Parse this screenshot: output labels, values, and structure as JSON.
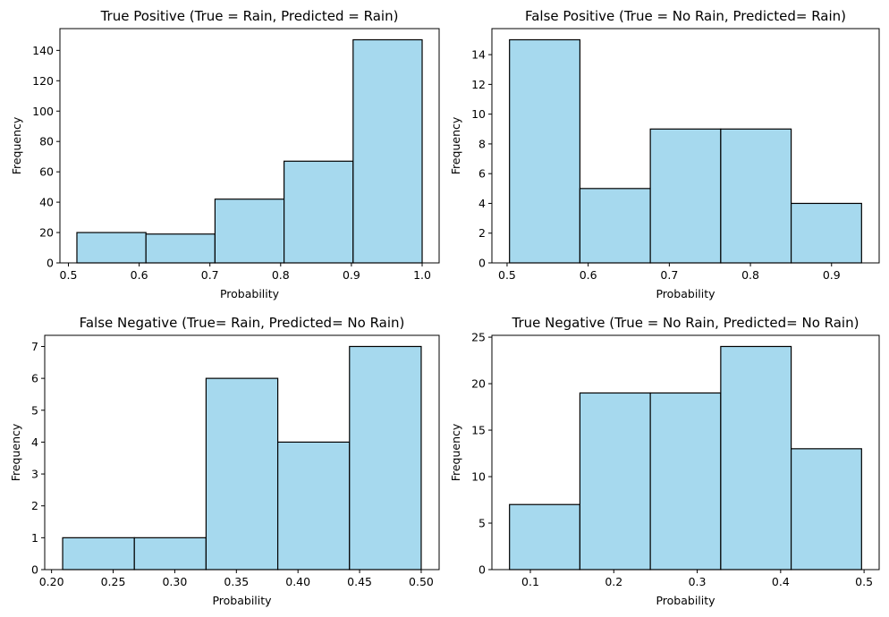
{
  "style": {
    "bar_fill": "#a6d9ee",
    "bar_edge": "#000000",
    "axis_color": "#000000"
  },
  "chart_data": [
    {
      "type": "bar",
      "title": "True Positive  (True = Rain, Predicted = Rain)",
      "xlabel": "Probability",
      "ylabel": "Frequency",
      "bin_edges": [
        0.512,
        0.6096,
        0.7072,
        0.8048,
        0.9024,
        1.0
      ],
      "values": [
        20,
        19,
        42,
        67,
        147
      ],
      "xlim": [
        0.488,
        1.024
      ],
      "ylim": [
        0,
        154.35
      ],
      "xticks": [
        0.5,
        0.6,
        0.7,
        0.8,
        0.9,
        1.0
      ],
      "xtick_labels": [
        "0.5",
        "0.6",
        "0.7",
        "0.8",
        "0.9",
        "1.0"
      ],
      "yticks": [
        0,
        20,
        40,
        60,
        80,
        100,
        120,
        140
      ],
      "ytick_labels": [
        "0",
        "20",
        "40",
        "60",
        "80",
        "100",
        "120",
        "140"
      ]
    },
    {
      "type": "bar",
      "title": "False Positive  (True = No Rain, Predicted= Rain)",
      "xlabel": "Probability",
      "ylabel": "Frequency",
      "bin_edges": [
        0.503,
        0.5898,
        0.6766,
        0.7634,
        0.8502,
        0.937
      ],
      "values": [
        15,
        5,
        9,
        9,
        4
      ],
      "xlim": [
        0.4813,
        0.9587
      ],
      "ylim": [
        0,
        15.75
      ],
      "xticks": [
        0.5,
        0.6,
        0.7,
        0.8,
        0.9
      ],
      "xtick_labels": [
        "0.5",
        "0.6",
        "0.7",
        "0.8",
        "0.9"
      ],
      "yticks": [
        0,
        2,
        4,
        6,
        8,
        10,
        12,
        14
      ],
      "ytick_labels": [
        "0",
        "2",
        "4",
        "6",
        "8",
        "10",
        "12",
        "14"
      ]
    },
    {
      "type": "bar",
      "title": "False Negative  (True= Rain, Predicted= No Rain)",
      "xlabel": "Probability",
      "ylabel": "Frequency",
      "bin_edges": [
        0.209,
        0.2672,
        0.3254,
        0.3836,
        0.4418,
        0.5
      ],
      "values": [
        1,
        1,
        6,
        4,
        7
      ],
      "xlim": [
        0.19445,
        0.51455
      ],
      "ylim": [
        0,
        7.35
      ],
      "xticks": [
        0.2,
        0.25,
        0.3,
        0.35,
        0.4,
        0.45,
        0.5
      ],
      "xtick_labels": [
        "0.20",
        "0.25",
        "0.30",
        "0.35",
        "0.40",
        "0.45",
        "0.50"
      ],
      "yticks": [
        0,
        1,
        2,
        3,
        4,
        5,
        6,
        7
      ],
      "ytick_labels": [
        "0",
        "1",
        "2",
        "3",
        "4",
        "5",
        "6",
        "7"
      ]
    },
    {
      "type": "bar",
      "title": "True Negative  (True = No Rain, Predicted= No Rain)",
      "xlabel": "Probability",
      "ylabel": "Frequency",
      "bin_edges": [
        0.075,
        0.1594,
        0.2438,
        0.3282,
        0.4126,
        0.497
      ],
      "values": [
        7,
        19,
        19,
        24,
        13
      ],
      "xlim": [
        0.0539,
        0.5181
      ],
      "ylim": [
        0,
        25.2
      ],
      "xticks": [
        0.1,
        0.2,
        0.3,
        0.4,
        0.5
      ],
      "xtick_labels": [
        "0.1",
        "0.2",
        "0.3",
        "0.4",
        "0.5"
      ],
      "yticks": [
        0,
        5,
        10,
        15,
        20,
        25
      ],
      "ytick_labels": [
        "0",
        "5",
        "10",
        "15",
        "20",
        "25"
      ]
    }
  ]
}
